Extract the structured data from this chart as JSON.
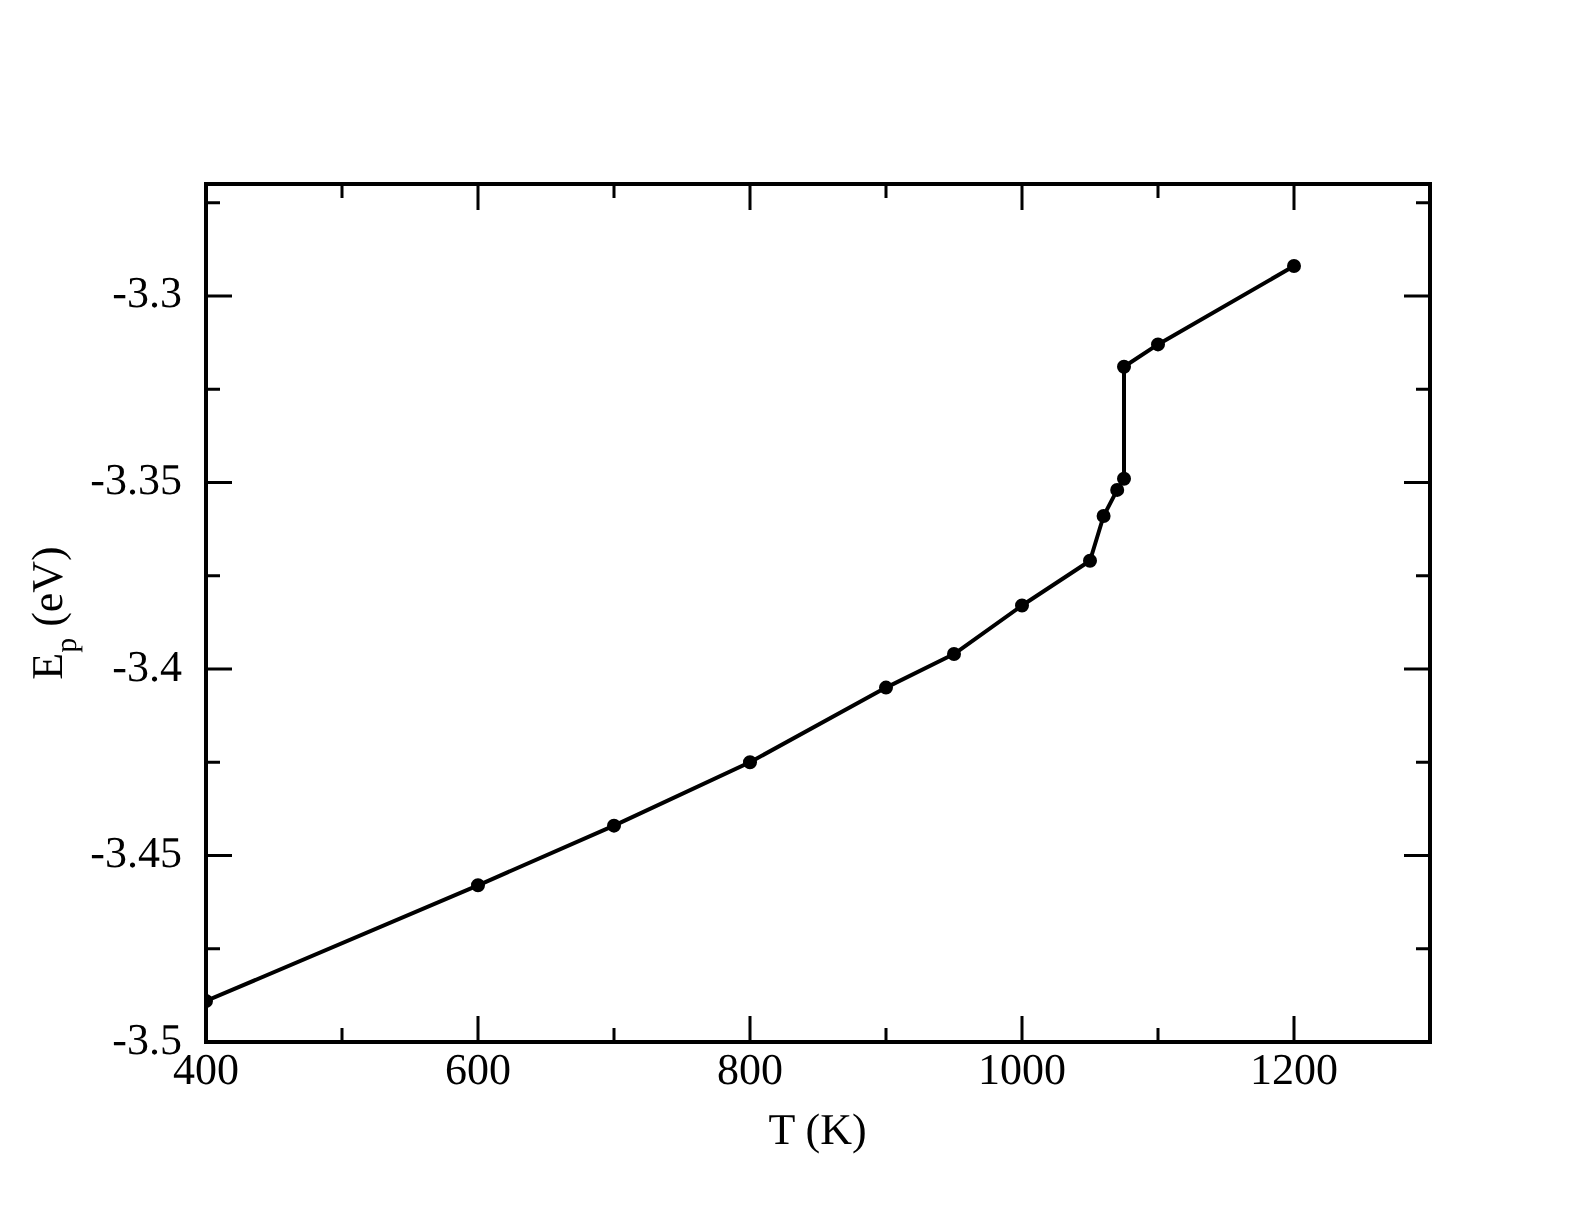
{
  "chart_data": {
    "type": "line",
    "xlabel": "T (K)",
    "ylabel": "E$_{p}$ (eV)",
    "x": [
      400,
      600,
      700,
      800,
      900,
      950,
      1000,
      1050,
      1060,
      1070,
      1075,
      1075,
      1100,
      1200
    ],
    "series": [
      {
        "color": "#000000",
        "values": [
          -3.489,
          -3.458,
          -3.442,
          -3.425,
          -3.405,
          -3.396,
          -3.383,
          -3.371,
          -3.359,
          -3.352,
          -3.349,
          -3.319,
          -3.313,
          -3.292
        ]
      }
    ],
    "xlim": [
      400,
      1300
    ],
    "xticks": [
      400,
      {
        "value": 500,
        "label": null
      },
      600,
      {
        "value": 700,
        "label": null
      },
      800,
      {
        "value": 900,
        "label": null
      },
      1000,
      {
        "value": 1100,
        "label": null
      },
      1200,
      {
        "value": 1300,
        "label": null
      }
    ],
    "ylim": [
      -3.5,
      -3.27
    ],
    "yticks": [
      -3.5,
      {
        "value": -3.475,
        "label": null
      },
      -3.45,
      {
        "value": -3.425,
        "label": null
      },
      -3.4,
      {
        "value": -3.375,
        "label": null
      },
      -3.35,
      {
        "value": -3.325,
        "label": null
      },
      -3.3,
      {
        "value": -3.275,
        "label": null
      }
    ],
    "grid": false,
    "legend": false,
    "marker": "circle",
    "line_style": "solid"
  }
}
